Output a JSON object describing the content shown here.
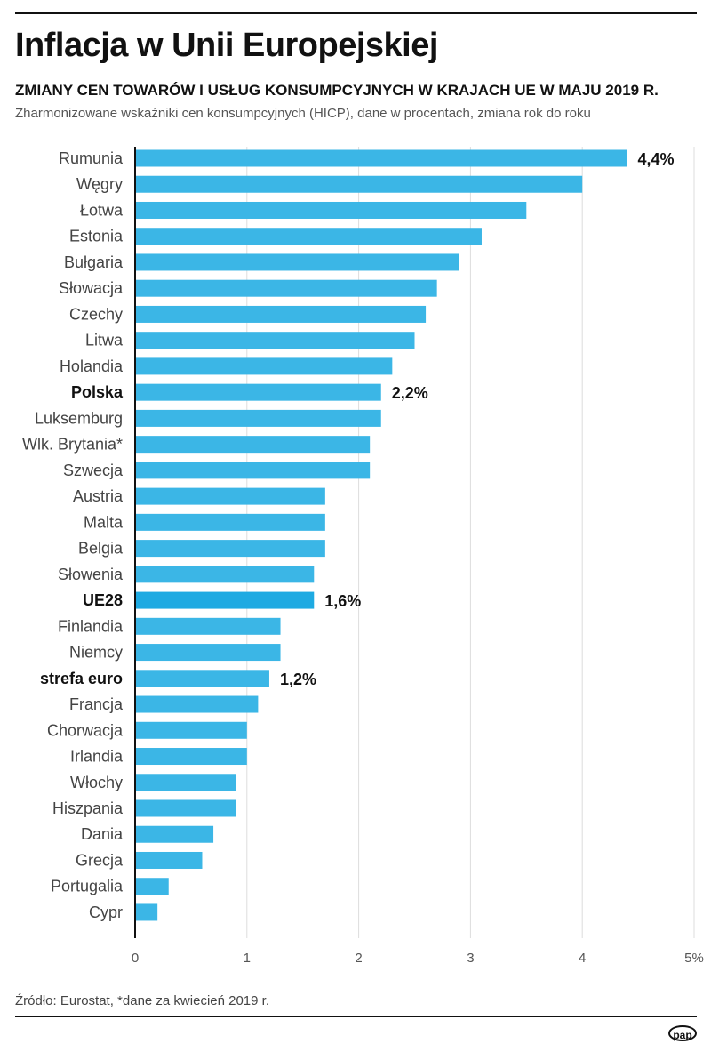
{
  "title": "Inflacja w Unii Europejskiej",
  "subtitle": "ZMIANY CEN TOWARÓW I USŁUG KONSUMPCYJNYCH W KRAJACH UE W MAJU 2019 R.",
  "description": "Zharmonizowane wskaźniki cen konsumpcyjnych (HICP), dane w procentach, zmiana rok do roku",
  "source": "Źródło: Eurostat, *dane za kwiecień 2019 r.",
  "logo": "pap",
  "colors": {
    "bar": "#3bb6e6",
    "highlight": "#1eaae2",
    "grid": "#dddddd",
    "axis": "#111111"
  },
  "chart_data": {
    "type": "bar",
    "orientation": "horizontal",
    "xlim": [
      0,
      5
    ],
    "ticks": [
      "0",
      "1",
      "2",
      "3",
      "4",
      "5%"
    ],
    "grid": true,
    "categories": [
      "Rumunia",
      "Węgry",
      "Łotwa",
      "Estonia",
      "Bułgaria",
      "Słowacja",
      "Czechy",
      "Litwa",
      "Holandia",
      "Polska",
      "Luksemburg",
      "Wlk. Brytania*",
      "Szwecja",
      "Austria",
      "Malta",
      "Belgia",
      "Słowenia",
      "UE28",
      "Finlandia",
      "Niemcy",
      "strefa euro",
      "Francja",
      "Chorwacja",
      "Irlandia",
      "Włochy",
      "Hiszpania",
      "Dania",
      "Grecja",
      "Portugalia",
      "Cypr"
    ],
    "values": [
      4.4,
      4.0,
      3.5,
      3.1,
      2.9,
      2.7,
      2.6,
      2.5,
      2.3,
      2.2,
      2.2,
      2.1,
      2.1,
      1.7,
      1.7,
      1.7,
      1.6,
      1.6,
      1.3,
      1.3,
      1.2,
      1.1,
      1.0,
      1.0,
      0.9,
      0.9,
      0.7,
      0.6,
      0.3,
      0.2
    ],
    "bold_categories": [
      "Polska",
      "UE28",
      "strefa euro"
    ],
    "highlight_category": "UE28",
    "data_labels": [
      {
        "category": "Rumunia",
        "text": "4,4%"
      },
      {
        "category": "Polska",
        "text": "2,2%"
      },
      {
        "category": "UE28",
        "text": "1,6%"
      },
      {
        "category": "strefa euro",
        "text": "1,2%"
      }
    ]
  }
}
